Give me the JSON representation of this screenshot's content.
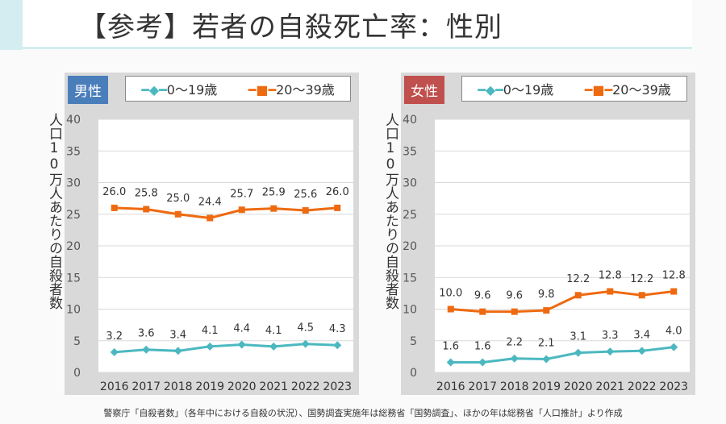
{
  "title": "【参考】若者の自殺死亡率：性別",
  "y_axis_label": "人口10万人あたりの自殺者数",
  "note": "警察庁「自殺者数」（各年中における自殺の状況）、国勢調査実施年は総務省「国勢調査」、ほかの年は総務省「人口推計」より作成",
  "chart_data": [
    {
      "type": "line",
      "badge": "男性",
      "badge_color": "#4a7ebb",
      "categories": [
        "2016",
        "2017",
        "2018",
        "2019",
        "2020",
        "2021",
        "2022",
        "2023"
      ],
      "ylim": [
        0,
        40
      ],
      "yticks": [
        "0",
        "5",
        "10",
        "15",
        "20",
        "25",
        "30",
        "35",
        "40"
      ],
      "grid": true,
      "legend": "top",
      "series": [
        {
          "name": "0〜19歳",
          "color": "#4bb8c0",
          "marker": "diamond",
          "values": [
            3.2,
            3.6,
            3.4,
            4.1,
            4.4,
            4.1,
            4.5,
            4.3
          ],
          "labels": [
            "3.2",
            "3.6",
            "3.4",
            "4.1",
            "4.4",
            "4.1",
            "4.5",
            "4.3"
          ]
        },
        {
          "name": "20〜39歳",
          "color": "#ee6a10",
          "marker": "square",
          "values": [
            26.0,
            25.8,
            25.0,
            24.4,
            25.7,
            25.9,
            25.6,
            26.0
          ],
          "labels": [
            "26.0",
            "25.8",
            "25.0",
            "24.4",
            "25.7",
            "25.9",
            "25.6",
            "26.0"
          ]
        }
      ]
    },
    {
      "type": "line",
      "badge": "女性",
      "badge_color": "#c0504d",
      "categories": [
        "2016",
        "2017",
        "2018",
        "2019",
        "2020",
        "2021",
        "2022",
        "2023"
      ],
      "ylim": [
        0,
        40
      ],
      "yticks": [
        "0",
        "5",
        "10",
        "15",
        "20",
        "25",
        "30",
        "35",
        "40"
      ],
      "grid": true,
      "legend": "top",
      "series": [
        {
          "name": "0〜19歳",
          "color": "#4bb8c0",
          "marker": "diamond",
          "values": [
            1.6,
            1.6,
            2.2,
            2.1,
            3.1,
            3.3,
            3.4,
            4.0
          ],
          "labels": [
            "1.6",
            "1.6",
            "2.2",
            "2.1",
            "3.1",
            "3.3",
            "3.4",
            "4.0"
          ]
        },
        {
          "name": "20〜39歳",
          "color": "#ee6a10",
          "marker": "square",
          "values": [
            10.0,
            9.6,
            9.6,
            9.8,
            12.2,
            12.8,
            12.2,
            12.8
          ],
          "labels": [
            "10.0",
            "9.6",
            "9.6",
            "9.8",
            "12.2",
            "12.8",
            "12.2",
            "12.8"
          ]
        }
      ]
    }
  ]
}
